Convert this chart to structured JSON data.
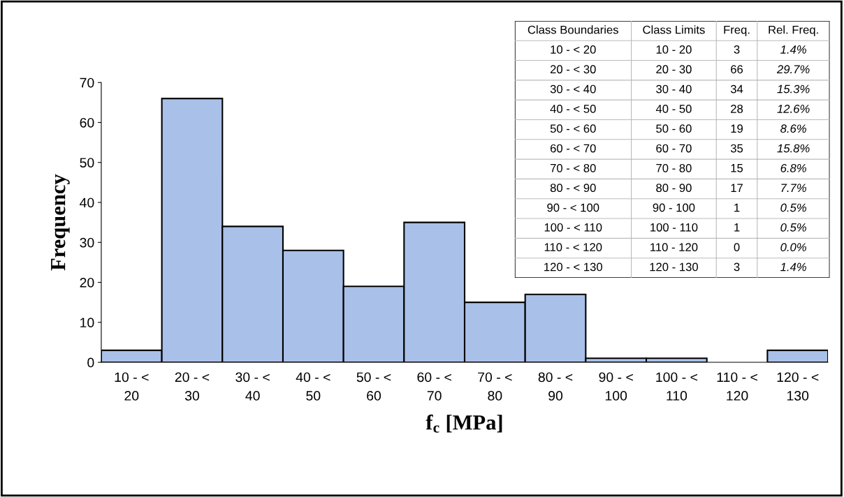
{
  "chart_data": [
    {
      "type": "bar",
      "xlabel": "f$_{c}$ [MPa]",
      "ylabel": "Frequency",
      "categories": [
        "10 - < 20",
        "20 - < 30",
        "30 - < 40",
        "40 - < 50",
        "50 - < 60",
        "60 - < 70",
        "70 - < 80",
        "80 - < 90",
        "90 - < 100",
        "100 - < 110",
        "110 - < 120",
        "120 - < 130"
      ],
      "values": [
        3,
        66,
        34,
        28,
        19,
        35,
        15,
        17,
        1,
        1,
        0,
        3
      ],
      "color": "#a9c0e8",
      "ylim": [
        0,
        70
      ],
      "yticks": [
        0,
        10,
        20,
        30,
        40,
        50,
        60,
        70
      ],
      "grid": false,
      "legend": false
    },
    {
      "type": "other",
      "annotations": [
        "Class Boundaries",
        "Class Limits",
        "Freq.",
        "Rel. Freq.",
        "10 - < 20",
        "10 - 20",
        "3",
        "1.4%",
        "20 - < 30",
        "20 - 30",
        "66",
        "29.7%",
        "30 - < 40",
        "30 - 40",
        "34",
        "15.3%",
        "40 - < 50",
        "40 - 50",
        "28",
        "12.6%",
        "50 - < 60",
        "50 - 60",
        "19",
        "8.6%",
        "60 - < 70",
        "60 - 70",
        "35",
        "15.8%",
        "70 - < 80",
        "70 - 80",
        "15",
        "6.8%",
        "80 - < 90",
        "80 - 90",
        "17",
        "7.7%",
        "90 - < 100",
        "90 - 100",
        "1",
        "0.5%",
        "100 - < 110",
        "100 - 110",
        "1",
        "0.5%",
        "110 - < 120",
        "110 - 120",
        "0",
        "0.0%",
        "120 - < 130",
        "120 - 130",
        "3",
        "1.4%"
      ]
    }
  ]
}
